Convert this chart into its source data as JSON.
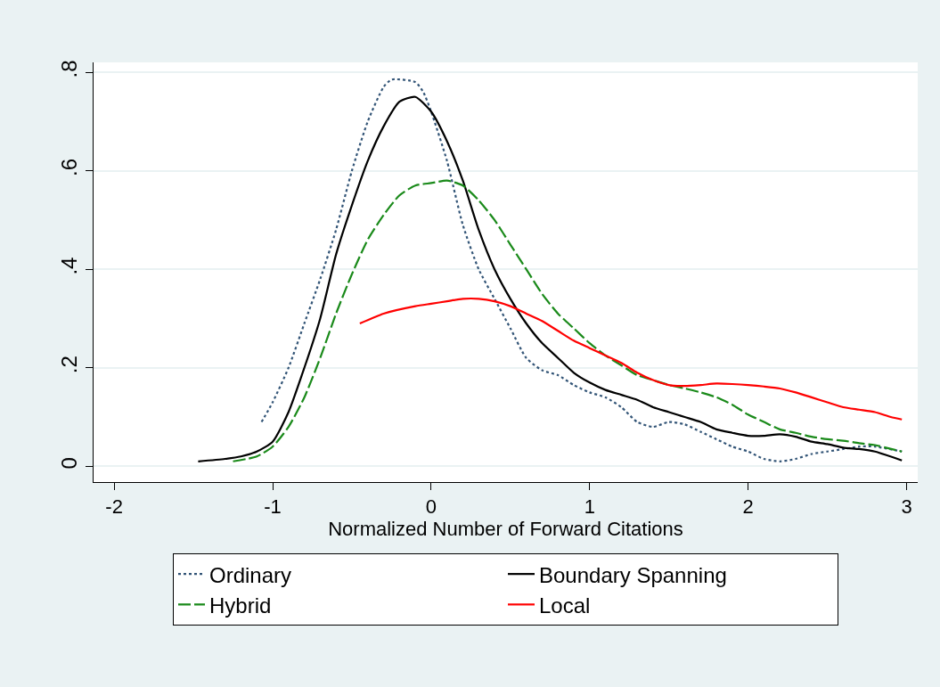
{
  "chart_data": {
    "type": "line",
    "xlabel": "Normalized Number of Forward Citations",
    "xlim": [
      -2.13,
      3.07
    ],
    "xticks": [
      -2,
      -1,
      0,
      1,
      2,
      3
    ],
    "ylim": [
      -0.032,
      0.82
    ],
    "yticks": [
      {
        "value": 0,
        "label": "0"
      },
      {
        "value": 0.2,
        "label": ".2"
      },
      {
        "value": 0.4,
        "label": ".4"
      },
      {
        "value": 0.6,
        "label": ".6"
      },
      {
        "value": 0.8,
        "label": ".8"
      }
    ],
    "grid": "y",
    "legend": "bottom",
    "marker": "none",
    "series": [
      {
        "name": "Ordinary",
        "color": "#335577",
        "line_style": "dotted",
        "x": [
          -1.07,
          -1,
          -0.9,
          -0.8,
          -0.7,
          -0.6,
          -0.5,
          -0.4,
          -0.3,
          -0.25,
          -0.1,
          -0.05,
          0,
          0.1,
          0.2,
          0.3,
          0.4,
          0.5,
          0.6,
          0.7,
          0.8,
          0.9,
          1.0,
          1.1,
          1.2,
          1.3,
          1.4,
          1.5,
          1.6,
          1.7,
          1.8,
          1.9,
          2.0,
          2.1,
          2.2,
          2.3,
          2.4,
          2.5,
          2.6,
          2.7,
          2.8,
          2.97
        ],
        "values": [
          0.09,
          0.13,
          0.2,
          0.29,
          0.38,
          0.48,
          0.6,
          0.7,
          0.77,
          0.785,
          0.78,
          0.76,
          0.72,
          0.62,
          0.49,
          0.4,
          0.34,
          0.28,
          0.22,
          0.195,
          0.185,
          0.165,
          0.15,
          0.14,
          0.12,
          0.09,
          0.08,
          0.09,
          0.085,
          0.07,
          0.055,
          0.04,
          0.03,
          0.015,
          0.01,
          0.015,
          0.025,
          0.03,
          0.035,
          0.04,
          0.04,
          0.03
        ]
      },
      {
        "name": "Boundary Spanning",
        "color": "#000000",
        "line_style": "solid",
        "x": [
          -1.47,
          -1.3,
          -1.2,
          -1.1,
          -1.0,
          -0.9,
          -0.8,
          -0.7,
          -0.6,
          -0.5,
          -0.4,
          -0.3,
          -0.2,
          -0.1,
          0,
          0.1,
          0.2,
          0.3,
          0.4,
          0.5,
          0.6,
          0.7,
          0.8,
          0.9,
          1.0,
          1.1,
          1.2,
          1.3,
          1.4,
          1.5,
          1.6,
          1.7,
          1.8,
          1.9,
          2.0,
          2.1,
          2.2,
          2.3,
          2.4,
          2.5,
          2.6,
          2.7,
          2.8,
          2.97
        ],
        "values": [
          0.01,
          0.015,
          0.02,
          0.03,
          0.05,
          0.11,
          0.2,
          0.3,
          0.43,
          0.53,
          0.62,
          0.69,
          0.74,
          0.75,
          0.72,
          0.66,
          0.58,
          0.48,
          0.4,
          0.34,
          0.29,
          0.25,
          0.22,
          0.19,
          0.17,
          0.155,
          0.145,
          0.135,
          0.12,
          0.11,
          0.1,
          0.09,
          0.075,
          0.068,
          0.062,
          0.062,
          0.065,
          0.06,
          0.05,
          0.045,
          0.038,
          0.035,
          0.03,
          0.012
        ]
      },
      {
        "name": "Hybrid",
        "color": "#1a8a1a",
        "line_style": "dashed",
        "x": [
          -1.25,
          -1.1,
          -1.0,
          -0.9,
          -0.8,
          -0.7,
          -0.6,
          -0.5,
          -0.4,
          -0.3,
          -0.2,
          -0.1,
          0,
          0.1,
          0.2,
          0.3,
          0.4,
          0.5,
          0.6,
          0.7,
          0.8,
          0.9,
          1.0,
          1.1,
          1.2,
          1.3,
          1.4,
          1.5,
          1.6,
          1.7,
          1.8,
          1.9,
          2.0,
          2.1,
          2.2,
          2.3,
          2.4,
          2.5,
          2.6,
          2.7,
          2.8,
          2.97
        ],
        "values": [
          0.01,
          0.02,
          0.04,
          0.08,
          0.14,
          0.22,
          0.31,
          0.39,
          0.46,
          0.51,
          0.55,
          0.57,
          0.575,
          0.58,
          0.57,
          0.54,
          0.5,
          0.45,
          0.4,
          0.35,
          0.31,
          0.28,
          0.25,
          0.225,
          0.205,
          0.185,
          0.175,
          0.165,
          0.158,
          0.15,
          0.14,
          0.125,
          0.105,
          0.09,
          0.075,
          0.068,
          0.06,
          0.055,
          0.052,
          0.047,
          0.043,
          0.03
        ]
      },
      {
        "name": "Local",
        "color": "#ff0000",
        "line_style": "solid",
        "x": [
          -0.45,
          -0.3,
          -0.1,
          0,
          0.1,
          0.2,
          0.3,
          0.4,
          0.5,
          0.6,
          0.7,
          0.8,
          0.9,
          1.0,
          1.1,
          1.2,
          1.3,
          1.4,
          1.5,
          1.6,
          1.7,
          1.8,
          1.9,
          2.0,
          2.1,
          2.2,
          2.3,
          2.4,
          2.5,
          2.6,
          2.7,
          2.8,
          2.9,
          2.97
        ],
        "values": [
          0.29,
          0.31,
          0.325,
          0.33,
          0.335,
          0.34,
          0.34,
          0.335,
          0.325,
          0.31,
          0.295,
          0.275,
          0.255,
          0.24,
          0.225,
          0.21,
          0.19,
          0.175,
          0.165,
          0.163,
          0.165,
          0.168,
          0.167,
          0.165,
          0.162,
          0.158,
          0.15,
          0.14,
          0.13,
          0.12,
          0.115,
          0.11,
          0.1,
          0.095
        ]
      }
    ]
  }
}
